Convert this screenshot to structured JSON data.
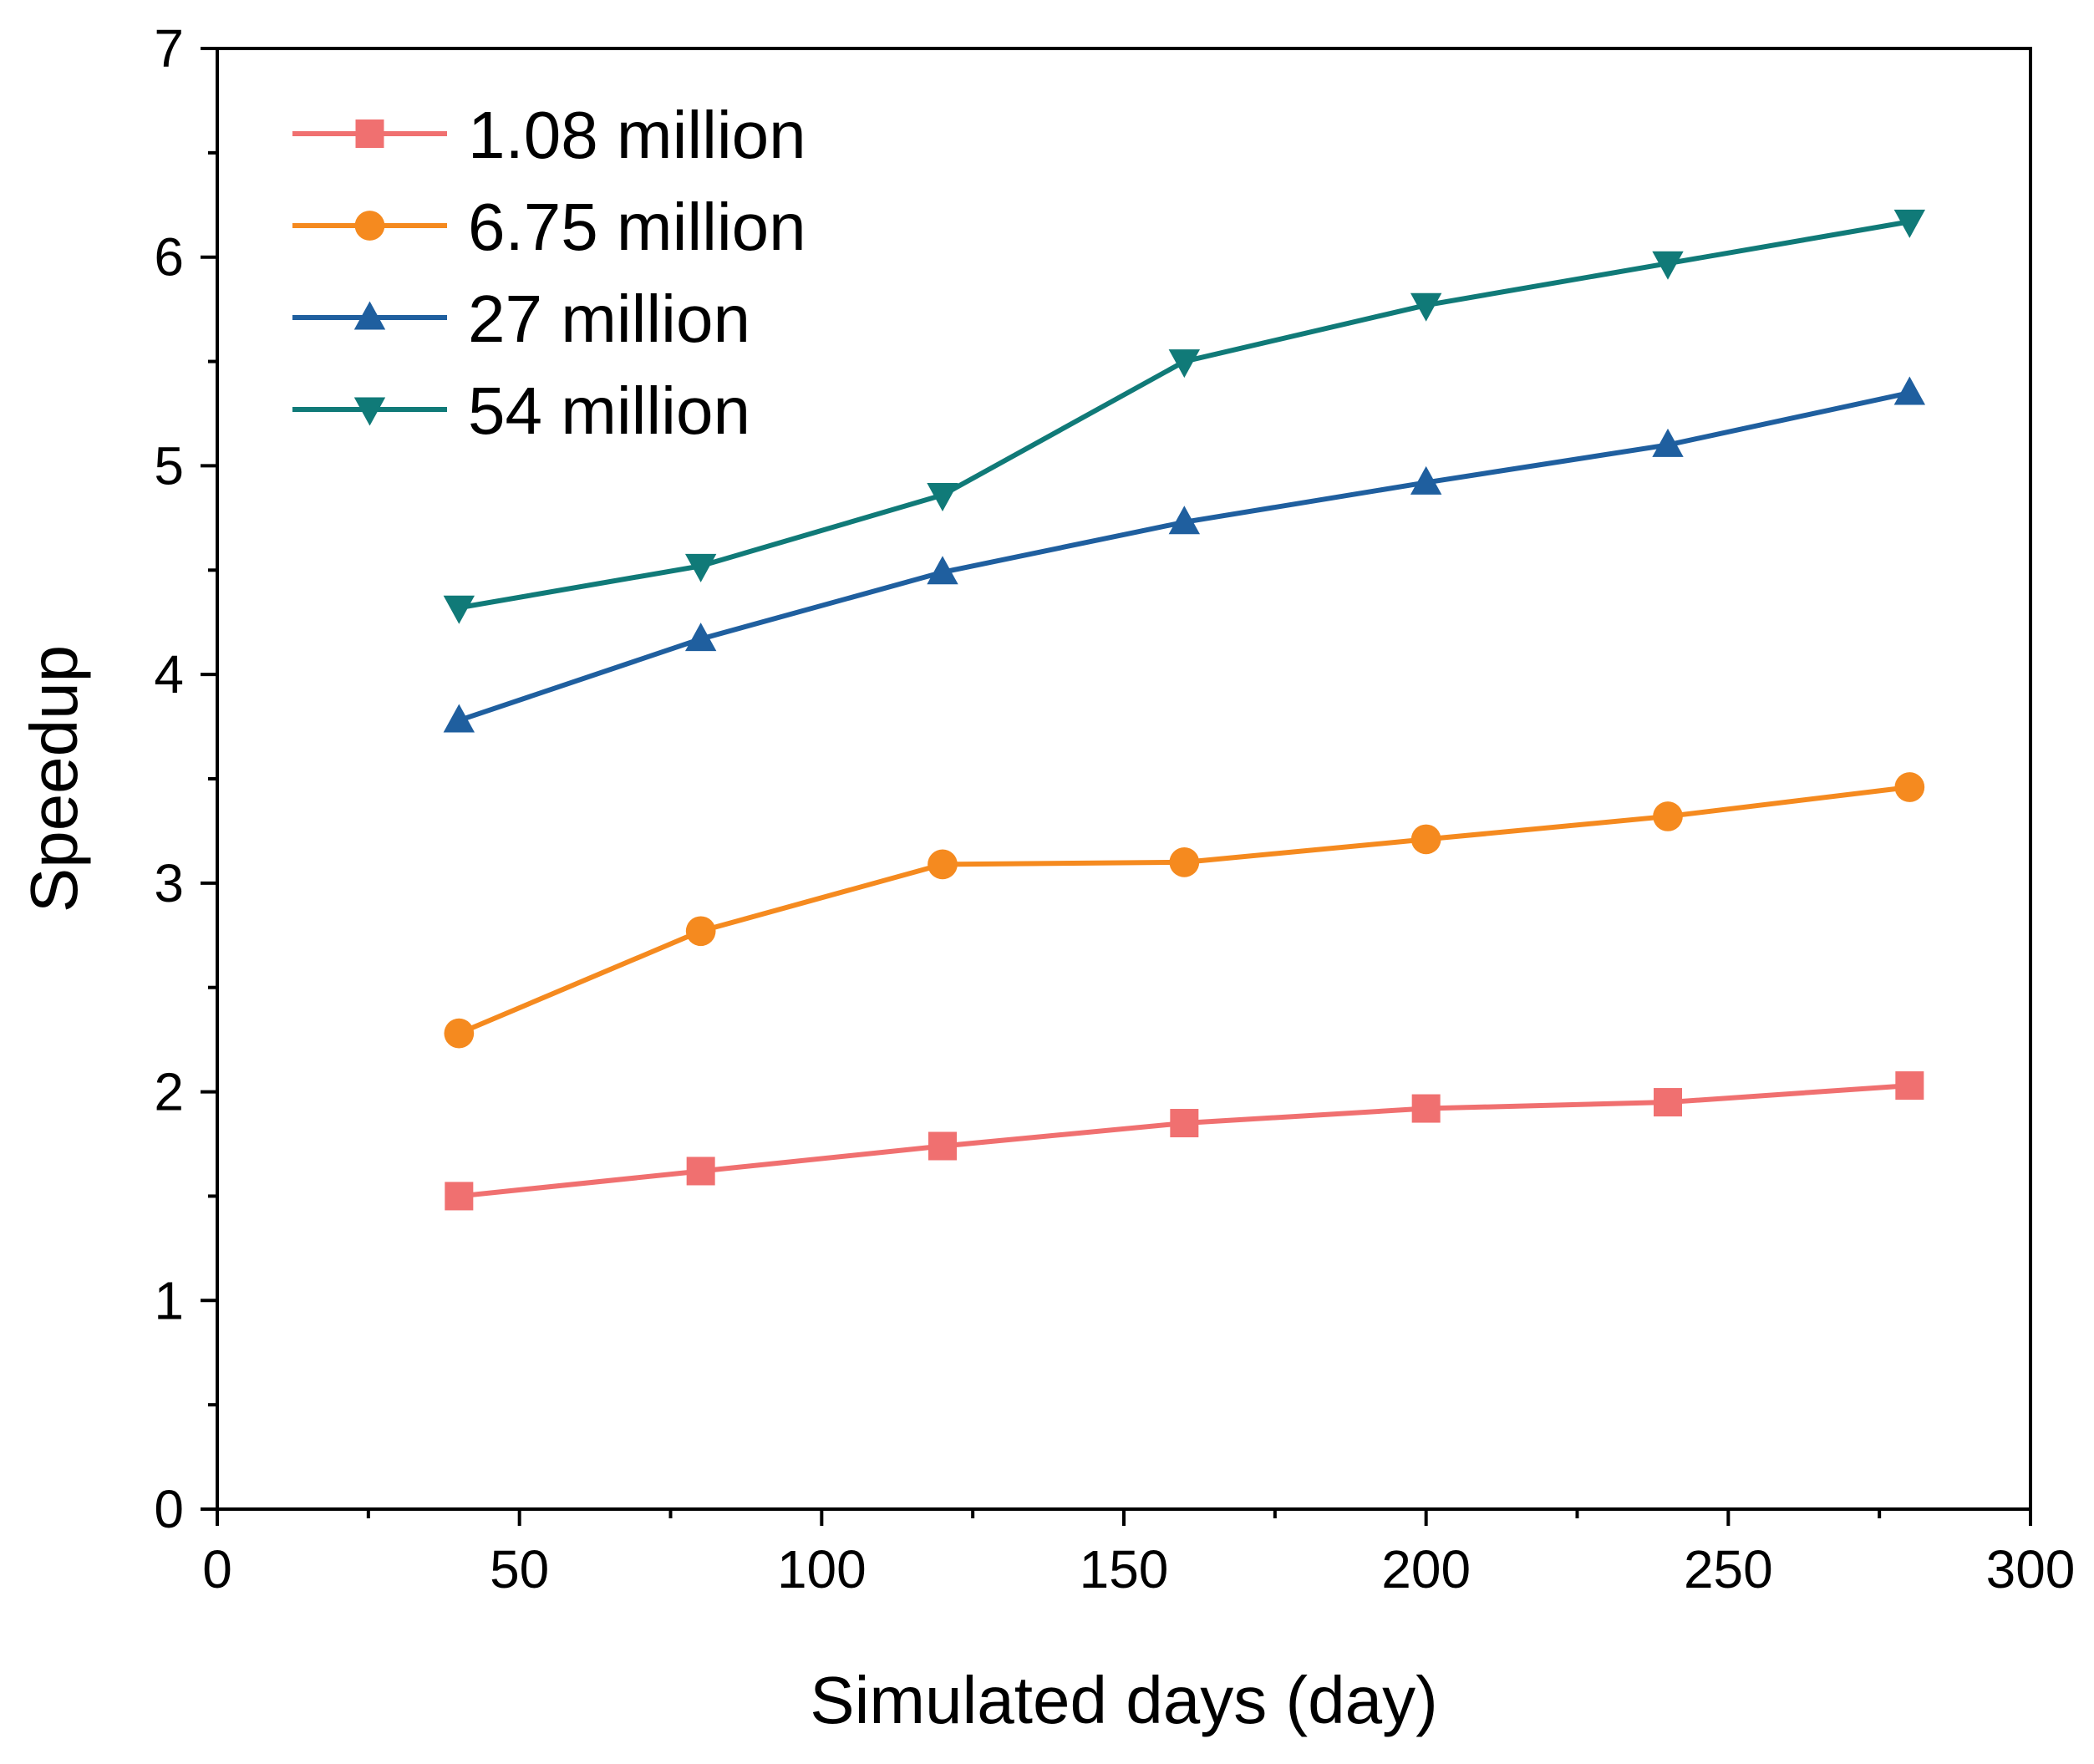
{
  "chart_data": {
    "type": "line",
    "title": "",
    "xlabel": "Simulated days (day)",
    "ylabel": "Speedup",
    "xlim": [
      0,
      300
    ],
    "ylim": [
      0,
      7
    ],
    "xticks": [
      0,
      50,
      100,
      150,
      200,
      250,
      300
    ],
    "xticks_minor": [
      25,
      75,
      125,
      175,
      225,
      275
    ],
    "yticks": [
      0,
      1,
      2,
      3,
      4,
      5,
      6,
      7
    ],
    "yticks_minor": [
      0.5,
      1.5,
      2.5,
      3.5,
      4.5,
      5.5,
      6.5
    ],
    "x": [
      40,
      80,
      120,
      160,
      200,
      240,
      280
    ],
    "grid": false,
    "legend_position": "top-left",
    "series": [
      {
        "name": "1.08 million",
        "color": "#F07070",
        "marker": "square",
        "values": [
          1.5,
          1.62,
          1.74,
          1.85,
          1.92,
          1.95,
          2.03
        ]
      },
      {
        "name": "6.75 million",
        "color": "#F58A1F",
        "marker": "circle",
        "values": [
          2.28,
          2.77,
          3.09,
          3.1,
          3.21,
          3.32,
          3.46
        ]
      },
      {
        "name": "27 million",
        "color": "#1F5F9F",
        "marker": "triangle-up",
        "values": [
          3.78,
          4.17,
          4.49,
          4.73,
          4.92,
          5.1,
          5.35
        ]
      },
      {
        "name": "54 million",
        "color": "#107A78",
        "marker": "triangle-down",
        "values": [
          4.32,
          4.52,
          4.86,
          5.5,
          5.77,
          5.97,
          6.17
        ]
      }
    ]
  }
}
